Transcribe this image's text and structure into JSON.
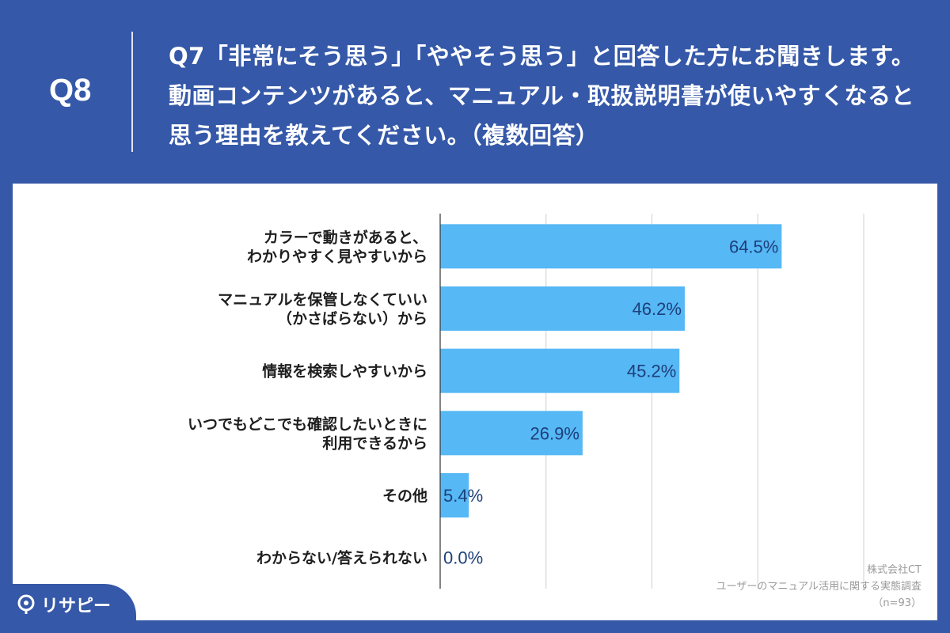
{
  "header": {
    "q_label": "Q8",
    "question": "Q7「非常にそう思う」「ややそう思う」と回答した方にお聞きします。動画コンテンツがあると、マニュアル・取扱説明書が使いやすくなると思う理由を教えてください。（複数回答）"
  },
  "credit": {
    "company": "株式会社CT",
    "survey": "ユーザーのマニュアル活用に関する実態調査",
    "n": "（n=93）"
  },
  "logo": {
    "text": "リサピー",
    "icon": "lightbulb-pin-icon"
  },
  "colors": {
    "header_bg": "#3558a8",
    "bar": "#56b8f5",
    "value_text": "#1d3f7a"
  },
  "chart_data": {
    "type": "bar",
    "orientation": "horizontal",
    "categories": [
      [
        "カラーで動きがあると、",
        "わかりやすく見やすいから"
      ],
      [
        "マニュアルを保管しなくていい",
        "（かさばらない）から"
      ],
      [
        "情報を検索しやすいから"
      ],
      [
        "いつでもどこでも確認したいときに",
        "利用できるから"
      ],
      [
        "その他"
      ],
      [
        "わからない/答えられない"
      ]
    ],
    "values": [
      64.5,
      46.2,
      45.2,
      26.9,
      5.4,
      0.0
    ],
    "value_labels": [
      "64.5%",
      "46.2%",
      "45.2%",
      "26.9%",
      "5.4%",
      "0.0%"
    ],
    "xlim": [
      0,
      80
    ],
    "grid": true,
    "legend": "none"
  }
}
